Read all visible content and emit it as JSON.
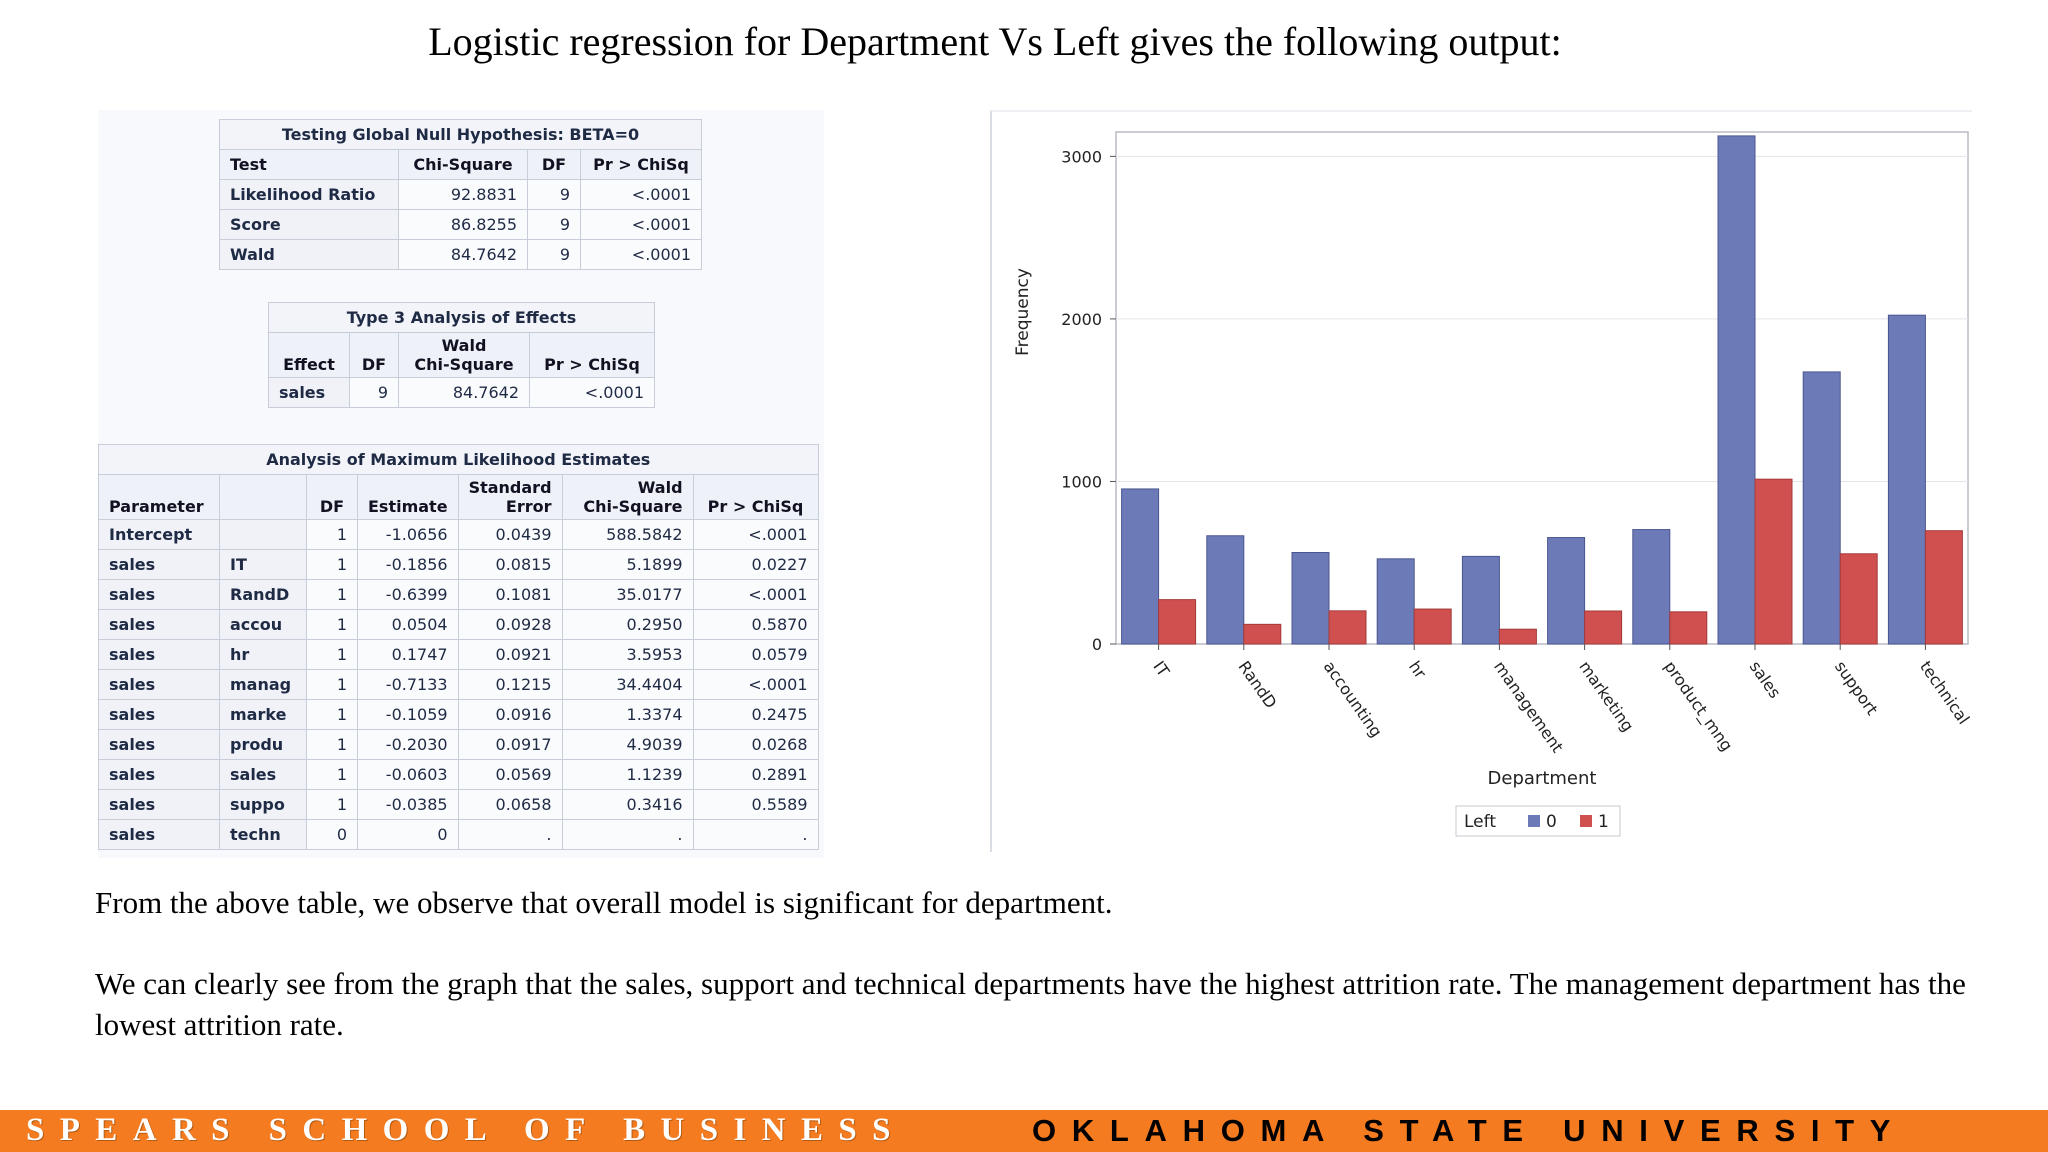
{
  "title": "Logistic regression for Department Vs Left gives the following output:",
  "global_null": {
    "caption": "Testing Global Null Hypothesis: BETA=0",
    "headers": [
      "Test",
      "Chi-Square",
      "DF",
      "Pr > ChiSq"
    ],
    "rows": [
      [
        "Likelihood Ratio",
        "92.8831",
        "9",
        "<.0001"
      ],
      [
        "Score",
        "86.8255",
        "9",
        "<.0001"
      ],
      [
        "Wald",
        "84.7642",
        "9",
        "<.0001"
      ]
    ]
  },
  "type3": {
    "caption": "Type 3 Analysis of Effects",
    "headers": [
      "Effect",
      "DF",
      "Wald",
      "Chi-Square",
      "Pr > ChiSq"
    ],
    "rows": [
      [
        "sales",
        "9",
        "84.7642",
        "<.0001"
      ]
    ]
  },
  "mle": {
    "caption": "Analysis of Maximum Likelihood Estimates",
    "headers": [
      "Parameter",
      "",
      "DF",
      "Estimate",
      "Standard",
      "Error",
      "Wald",
      "Chi-Square",
      "Pr > ChiSq"
    ],
    "rows": [
      [
        "Intercept",
        "",
        "1",
        "-1.0656",
        "0.0439",
        "588.5842",
        "<.0001"
      ],
      [
        "sales",
        "IT",
        "1",
        "-0.1856",
        "0.0815",
        "5.1899",
        "0.0227"
      ],
      [
        "sales",
        "RandD",
        "1",
        "-0.6399",
        "0.1081",
        "35.0177",
        "<.0001"
      ],
      [
        "sales",
        "accou",
        "1",
        "0.0504",
        "0.0928",
        "0.2950",
        "0.5870"
      ],
      [
        "sales",
        "hr",
        "1",
        "0.1747",
        "0.0921",
        "3.5953",
        "0.0579"
      ],
      [
        "sales",
        "manag",
        "1",
        "-0.7133",
        "0.1215",
        "34.4404",
        "<.0001"
      ],
      [
        "sales",
        "marke",
        "1",
        "-0.1059",
        "0.0916",
        "1.3374",
        "0.2475"
      ],
      [
        "sales",
        "produ",
        "1",
        "-0.2030",
        "0.0917",
        "4.9039",
        "0.0268"
      ],
      [
        "sales",
        "sales",
        "1",
        "-0.0603",
        "0.0569",
        "1.1239",
        "0.2891"
      ],
      [
        "sales",
        "suppo",
        "1",
        "-0.0385",
        "0.0658",
        "0.3416",
        "0.5589"
      ],
      [
        "sales",
        "techn",
        "0",
        "0",
        ".",
        ".",
        "."
      ]
    ]
  },
  "chart_data": {
    "type": "bar",
    "categories": [
      "IT",
      "RandD",
      "accounting",
      "hr",
      "management",
      "marketing",
      "product_mng",
      "sales",
      "support",
      "technical"
    ],
    "series": [
      {
        "name": "0",
        "color": "#6c7bb8",
        "values": [
          954,
          666,
          563,
          524,
          539,
          655,
          704,
          3126,
          1674,
          2023
        ]
      },
      {
        "name": "1",
        "color": "#d05050",
        "values": [
          273,
          121,
          204,
          215,
          91,
          203,
          198,
          1014,
          555,
          697
        ]
      }
    ],
    "xlabel": "Department",
    "ylabel": "Frequency",
    "yticks": [
      "0",
      "1000",
      "2000",
      "3000"
    ],
    "ylim": [
      0,
      3150
    ],
    "legend_title": "Left",
    "legend_position": "bottom"
  },
  "paragraph1": "From the above table, we observe that overall model is significant for department.",
  "paragraph2": "We can clearly see from the graph that the sales, support and technical departments have the highest attrition rate. The management department has the lowest attrition rate.",
  "footer": {
    "school": "SPEARS SCHOOL OF BUSINESS",
    "university": "OKLAHOMA STATE UNIVERSITY"
  }
}
